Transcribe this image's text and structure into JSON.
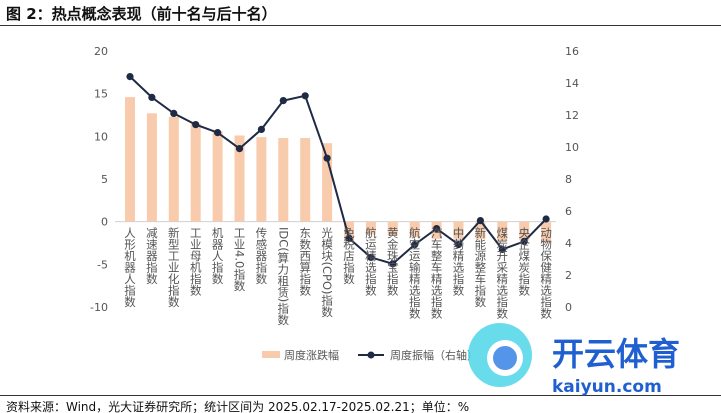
{
  "title": "图 2：热点概念表现（前十名与后十名）",
  "footer": "资料来源：Wind，光大证券研究所；统计区间为 2025.02.17-2025.02.21；单位：%",
  "watermark": {
    "text": "开云体育",
    "sub": "kaiyun.com"
  },
  "chart_data": {
    "type": "bar+line",
    "categories": [
      "人形机器人指数",
      "减速器指数",
      "新型工业化指数",
      "工业母机指数",
      "机器人指数",
      "工业4.0指数",
      "传感器指数",
      "IDC(算力租赁)指数",
      "东数西算指数",
      "光模块(CPO)指数",
      "免税店指数",
      "航运精选指数",
      "黄金珠宝指数",
      "航空运输精选指数",
      "汽车整车精选指数",
      "中药精选指数",
      "新能源整车指数",
      "煤炭开采精选指数",
      "央企煤炭指数",
      "动物保健精选指数"
    ],
    "series": [
      {
        "name": "周度涨跌幅",
        "type": "bar",
        "axis": "left",
        "color": "#F8CBAD",
        "values": [
          14.6,
          12.7,
          12.3,
          11.5,
          10.6,
          10.1,
          9.9,
          9.8,
          9.8,
          9.2,
          -2.3,
          -1.5,
          -1.6,
          -1.8,
          -2.0,
          -2.0,
          -2.0,
          -2.3,
          -2.2,
          -2.5
        ]
      },
      {
        "name": "周度振幅（右轴）",
        "type": "line",
        "axis": "right",
        "color": "#1F2A44",
        "values": [
          14.4,
          13.1,
          12.1,
          11.4,
          10.9,
          9.9,
          11.1,
          12.9,
          13.2,
          9.3,
          4.3,
          3.1,
          2.7,
          3.9,
          4.9,
          3.9,
          5.4,
          3.6,
          4.1,
          5.5
        ]
      }
    ],
    "left_axis": {
      "range": [
        -10,
        20
      ],
      "ticks": [
        "20",
        "15",
        "10",
        "5",
        "0",
        "-5",
        "-10"
      ]
    },
    "right_axis": {
      "range": [
        0,
        16
      ],
      "ticks": [
        "16",
        "14",
        "12",
        "10",
        "8",
        "6",
        "4",
        "2",
        "0"
      ]
    },
    "legend_position": "bottom"
  }
}
